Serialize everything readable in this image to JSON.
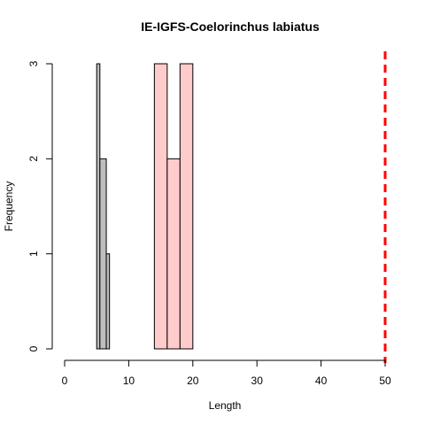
{
  "chart_data": {
    "type": "bar",
    "title": "IE-IGFS-Coelorinchus labiatus",
    "xlabel": "Length",
    "ylabel": "Frequency",
    "xlim": [
      0,
      50
    ],
    "ylim": [
      0,
      3
    ],
    "x_ticks": [
      0,
      10,
      20,
      30,
      40,
      50
    ],
    "y_ticks": [
      0,
      1,
      2,
      3
    ],
    "grid": false,
    "series": [
      {
        "color": "#bebebe",
        "bins": [
          {
            "x0": 5,
            "x1": 5.5,
            "count": 3
          },
          {
            "x0": 5.5,
            "x1": 6.5,
            "count": 2
          },
          {
            "x0": 6.5,
            "x1": 7,
            "count": 1
          }
        ]
      },
      {
        "color": "#ffcccc",
        "bins": [
          {
            "x0": 14,
            "x1": 16,
            "count": 3
          },
          {
            "x0": 16,
            "x1": 18,
            "count": 2
          },
          {
            "x0": 18,
            "x1": 20,
            "count": 3
          }
        ]
      }
    ],
    "reference_line": {
      "x": 50,
      "color": "#ff0000",
      "style": "dashed"
    }
  }
}
